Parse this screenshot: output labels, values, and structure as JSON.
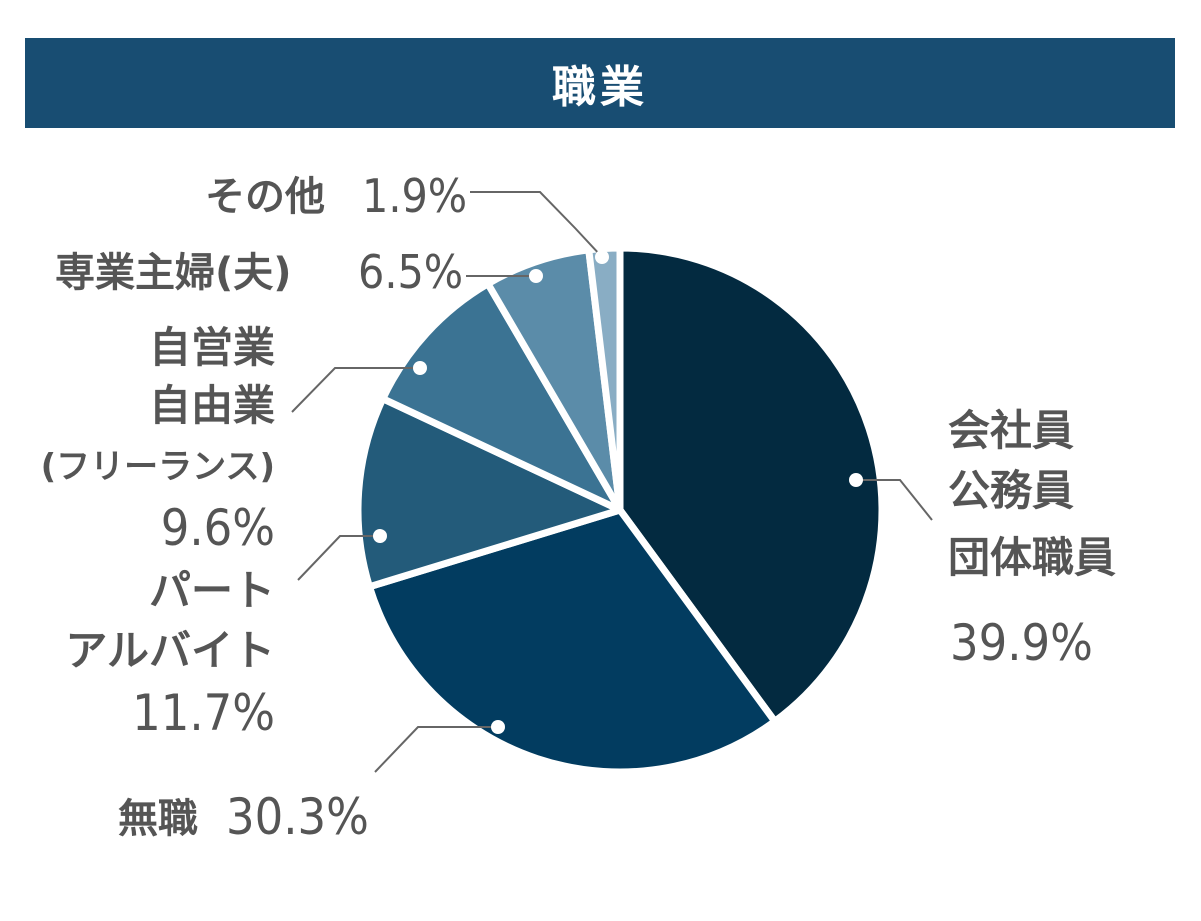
{
  "chart_data": {
    "type": "pie",
    "title": "職業",
    "start_angle_deg": 0,
    "direction": "clockwise",
    "slices": [
      {
        "name_lines": [
          "会社員",
          "公務員",
          "団体職員"
        ],
        "value": 39.9,
        "label": "39.9%",
        "color": "#032a40"
      },
      {
        "name_lines": [
          "無職"
        ],
        "value": 30.3,
        "label": "30.3%",
        "color": "#023c60"
      },
      {
        "name_lines": [
          "パート",
          "アルバイト"
        ],
        "value": 11.7,
        "label": "11.7%",
        "color": "#235b7a"
      },
      {
        "name_lines": [
          "自営業",
          "自由業",
          "(フリーランス)"
        ],
        "value": 9.6,
        "label": "9.6%",
        "color": "#3b7393"
      },
      {
        "name_lines": [
          "専業主婦(夫)"
        ],
        "value": 6.5,
        "label": "6.5%",
        "color": "#5b8ca9"
      },
      {
        "name_lines": [
          "その他"
        ],
        "value": 1.9,
        "label": "1.9%",
        "color": "#89adc4"
      }
    ]
  }
}
